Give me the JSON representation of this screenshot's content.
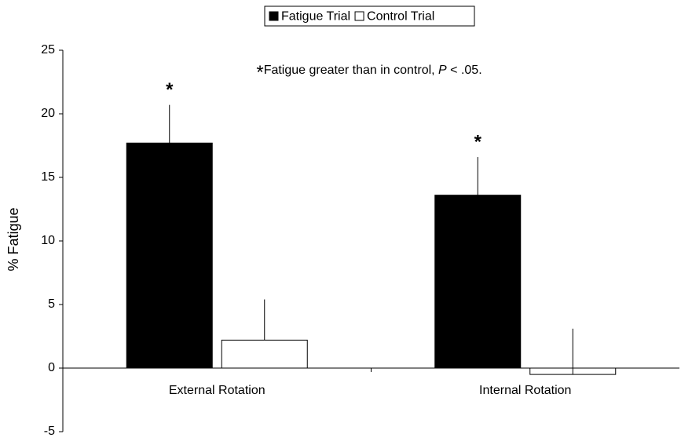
{
  "chart_data": {
    "type": "bar",
    "y_label": "% Fatigue",
    "annotation": [
      "*",
      "Fatigue greater than in control, ",
      "P",
      " < .05."
    ],
    "categories": [
      "External Rotation",
      "Internal Rotation"
    ],
    "series": [
      {
        "name": "Fatigue Trial",
        "color": "#000000",
        "values": [
          17.7,
          13.6
        ],
        "errors": [
          3.0,
          3.0
        ],
        "significance_labels": [
          "*",
          "*"
        ]
      },
      {
        "name": "Control Trial",
        "color": "#ffffff",
        "values": [
          2.2,
          -0.5
        ],
        "errors": [
          3.2,
          3.6
        ]
      }
    ],
    "ylim": [
      -5,
      25
    ],
    "yticks": [
      -5,
      0,
      5,
      10,
      15,
      20,
      25
    ],
    "grid": false,
    "legend": "top"
  }
}
